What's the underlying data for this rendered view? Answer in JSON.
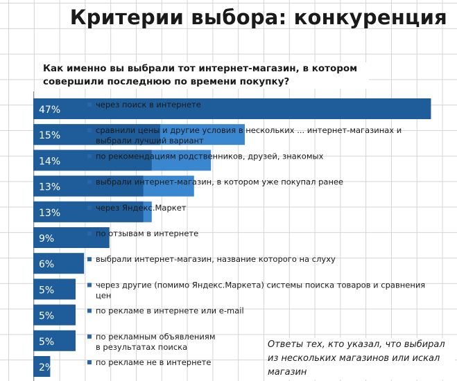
{
  "header": {
    "title": "Критерии выбора: конкуренция",
    "question": "Как именно вы выбрали тот интернет-магазин, в котором совершили последнюю по времени покупку?"
  },
  "footnote": "Ответы тех, кто указал, что выбирал из нескольких магазинов или искал магазин",
  "colors": {
    "bar_dark": "#1e5d99",
    "bar_light": "#3a86cf",
    "bullet": "#2866a8",
    "text": "#1a1a1a"
  },
  "chart_data": {
    "type": "bar",
    "orientation": "horizontal",
    "title": "",
    "xlabel": "",
    "ylabel": "",
    "categories": [
      "через поиск в интернете",
      "сравнили цены и другие условия в нескольких ... интернет-магазинах и выбрали лучший вариант",
      "по рекомендациям родственников, друзей, знакомых",
      "выбрали интернет-магазин, в котором уже покупал ранее",
      "через Яндекс.Маркет",
      "по отзывам в интернете",
      "выбрали интернет-магазин, название которого на слуху",
      "через другие (помимо Яндекс.Маркета) системы поиска товаров и сравнения цен",
      "по рекламе в интернете или e-mail",
      "по рекламным объявлениям в результатах поиска",
      "по рекламе не в интернете"
    ],
    "label_lines": [
      [
        "через поиск в интернете"
      ],
      [
        "сравнили цены и другие условия в нескольких ... интернет-магазинах и",
        "выбрали лучший вариант"
      ],
      [
        "по рекомендациям родственников, друзей, знакомых"
      ],
      [
        "выбрали интернет-магазин, в котором уже покупал ранее"
      ],
      [
        "через Яндекс.Маркет"
      ],
      [
        "по отзывам в интернете"
      ],
      [
        "выбрали интернет-магазин, название которого на слуху"
      ],
      [
        "через другие (помимо Яндекс.Маркета) системы поиска товаров и сравнения",
        "цен"
      ],
      [
        "по рекламе в интернете или e-mail"
      ],
      [
        "по рекламным объявлениям",
        "в результатах поиска"
      ],
      [
        "по рекламе не в интернете"
      ]
    ],
    "series": [
      {
        "values": [
          47,
          15,
          14,
          13,
          13,
          9,
          6,
          5,
          5,
          5,
          2
        ],
        "labels": [
          "47%",
          "15%",
          "14%",
          "13%",
          "13%",
          "9%",
          "6%",
          "5%",
          "5%",
          "5%",
          "2%"
        ]
      },
      {
        "values": [
          47,
          25,
          21,
          19,
          14,
          2,
          0,
          0,
          0,
          0,
          0
        ]
      }
    ],
    "xlim": [
      0,
      50
    ],
    "grid": true,
    "legend": "none"
  }
}
